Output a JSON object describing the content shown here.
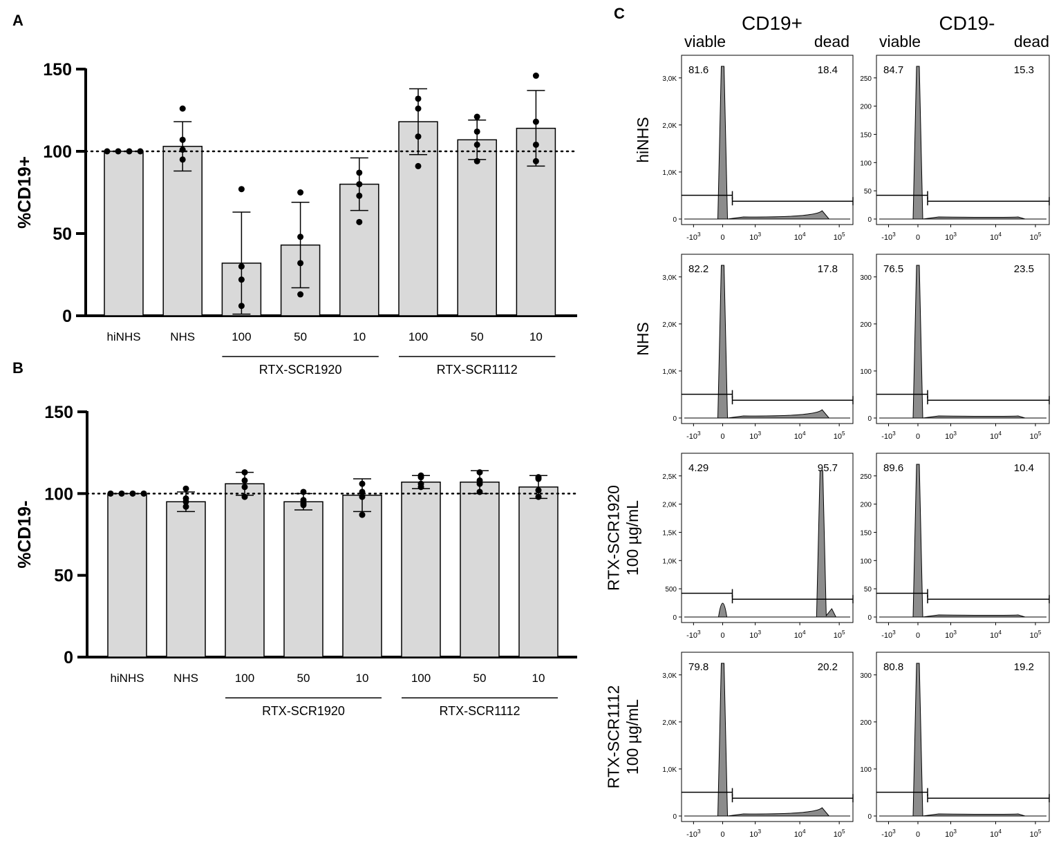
{
  "panel_labels": {
    "a": "A",
    "b": "B",
    "c": "C"
  },
  "colors": {
    "bar_fill": "#d9d9d9",
    "bar_stroke": "#000000",
    "hist_fill": "#8c8c8c",
    "dot": "#000000"
  },
  "group_labels": {
    "g1": "RTX-SCR1920",
    "g2": "RTX-SCR1112"
  },
  "flow": {
    "col_titles": [
      "CD19+",
      "CD19-"
    ],
    "gate_viable": "viable",
    "gate_dead": "dead",
    "x_ticks": [
      "-10^3",
      "0",
      "10^3",
      "10^4",
      "10^5"
    ],
    "rows": [
      {
        "label": [
          "hiNHS"
        ],
        "cd19pos": {
          "viable": "81.6",
          "dead": "18.4",
          "y_ticks": [
            "0",
            "1,0K",
            "2,0K",
            "3,0K"
          ]
        },
        "cd19neg": {
          "viable": "84.7",
          "dead": "15.3",
          "y_ticks": [
            "0",
            "50",
            "100",
            "150",
            "200",
            "250"
          ]
        }
      },
      {
        "label": [
          "NHS"
        ],
        "cd19pos": {
          "viable": "82.2",
          "dead": "17.8",
          "y_ticks": [
            "0",
            "1,0K",
            "2,0K",
            "3,0K"
          ]
        },
        "cd19neg": {
          "viable": "76.5",
          "dead": "23.5",
          "y_ticks": [
            "0",
            "100",
            "200",
            "300"
          ]
        }
      },
      {
        "label": [
          "RTX-SCR1920",
          "100 µg/mL"
        ],
        "cd19pos": {
          "viable": "4.29",
          "dead": "95.7",
          "y_ticks": [
            "0",
            "500",
            "1,0K",
            "1,5K",
            "2,0K",
            "2,5K"
          ]
        },
        "cd19neg": {
          "viable": "89.6",
          "dead": "10.4",
          "y_ticks": [
            "0",
            "50",
            "100",
            "150",
            "200",
            "250"
          ]
        }
      },
      {
        "label": [
          "RTX-SCR1112",
          "100 µg/mL"
        ],
        "cd19pos": {
          "viable": "79.8",
          "dead": "20.2",
          "y_ticks": [
            "0",
            "1,0K",
            "2,0K",
            "3,0K"
          ]
        },
        "cd19neg": {
          "viable": "80.8",
          "dead": "19.2",
          "y_ticks": [
            "0",
            "100",
            "200",
            "300"
          ]
        }
      }
    ]
  },
  "chart_data": [
    {
      "type": "bar",
      "panel": "A",
      "ylabel": "%CD19+",
      "ylim": [
        0,
        150
      ],
      "yticks": [
        0,
        50,
        100,
        150
      ],
      "reference_line": 100,
      "categories": [
        "hiNHS",
        "NHS",
        "100",
        "50",
        "10",
        "100",
        "50",
        "10"
      ],
      "values": [
        100,
        103,
        32,
        43,
        80,
        118,
        107,
        114
      ],
      "errors": [
        0,
        15,
        31,
        26,
        16,
        20,
        12,
        23
      ],
      "points": [
        [
          100,
          100,
          100,
          100
        ],
        [
          126,
          107,
          101,
          95
        ],
        [
          77,
          30,
          22,
          6
        ],
        [
          75,
          48,
          32,
          13
        ],
        [
          87,
          80,
          73,
          57
        ],
        [
          132,
          126,
          109,
          91
        ],
        [
          121,
          112,
          104,
          94
        ],
        [
          146,
          118,
          104,
          94
        ]
      ],
      "groups": [
        {
          "label": "RTX-SCR1920",
          "from": 2,
          "to": 4
        },
        {
          "label": "RTX-SCR1112",
          "from": 5,
          "to": 7
        }
      ]
    },
    {
      "type": "bar",
      "panel": "B",
      "ylabel": "%CD19-",
      "ylim": [
        0,
        150
      ],
      "yticks": [
        0,
        50,
        100,
        150
      ],
      "reference_line": 100,
      "categories": [
        "hiNHS",
        "NHS",
        "100",
        "50",
        "10",
        "100",
        "50",
        "10"
      ],
      "values": [
        100,
        95,
        106,
        95,
        99,
        107,
        107,
        104
      ],
      "errors": [
        0,
        6,
        7,
        5,
        10,
        4,
        7,
        7
      ],
      "points": [
        [
          100,
          100,
          100,
          100
        ],
        [
          103,
          97,
          95,
          92
        ],
        [
          113,
          108,
          104,
          98
        ],
        [
          101,
          96,
          94,
          93
        ],
        [
          106,
          101,
          98,
          87
        ],
        [
          111,
          110,
          106,
          104
        ],
        [
          113,
          108,
          106,
          101
        ],
        [
          110,
          109,
          102,
          98
        ]
      ],
      "groups": [
        {
          "label": "RTX-SCR1920",
          "from": 2,
          "to": 4
        },
        {
          "label": "RTX-SCR1112",
          "from": 5,
          "to": 7
        }
      ]
    }
  ]
}
